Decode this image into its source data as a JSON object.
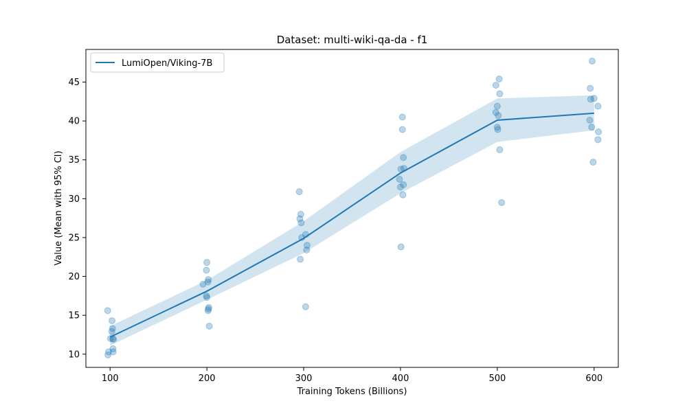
{
  "chart_data": {
    "type": "line",
    "title": "Dataset: multi-wiki-qa-da - f1",
    "xlabel": "Training Tokens (Billions)",
    "ylabel": "Value (Mean with 95% CI)",
    "xlim": [
      75,
      625
    ],
    "ylim": [
      8.3,
      49.2
    ],
    "xticks": [
      100,
      200,
      300,
      400,
      500,
      600
    ],
    "yticks": [
      10,
      15,
      20,
      25,
      30,
      35,
      40,
      45
    ],
    "grid": false,
    "legend_position": "top-left",
    "colors": {
      "line": "#1f77b4",
      "band": "#1f77b4",
      "points": "#1f77b4"
    },
    "series": [
      {
        "name": "LumiOpen/Viking-7B",
        "x": [
          100,
          200,
          300,
          400,
          500,
          600
        ],
        "mean": [
          12.2,
          18.1,
          24.9,
          33.3,
          40.1,
          41.0
        ],
        "ci_lower": [
          11.1,
          17.0,
          23.0,
          30.7,
          37.3,
          38.8
        ],
        "ci_upper": [
          13.6,
          19.5,
          27.1,
          36.0,
          42.9,
          43.3
        ]
      }
    ],
    "scatter_points": [
      [
        97.5,
        15.6
      ],
      [
        98.5,
        10.3
      ],
      [
        97.8,
        9.9
      ],
      [
        102.0,
        14.3
      ],
      [
        102.5,
        13.3
      ],
      [
        101.8,
        12.9
      ],
      [
        100.5,
        12.0
      ],
      [
        102.8,
        12.0
      ],
      [
        103.5,
        11.9
      ],
      [
        103.0,
        10.7
      ],
      [
        103.2,
        10.3
      ],
      [
        200.0,
        21.8
      ],
      [
        199.5,
        20.8
      ],
      [
        196.0,
        19.0
      ],
      [
        201.5,
        19.6
      ],
      [
        201.0,
        19.3
      ],
      [
        199.5,
        17.5
      ],
      [
        200.0,
        17.3
      ],
      [
        202.0,
        16.0
      ],
      [
        201.5,
        15.8
      ],
      [
        201.2,
        15.6
      ],
      [
        202.5,
        13.6
      ],
      [
        295.5,
        30.9
      ],
      [
        297.0,
        28.0
      ],
      [
        296.0,
        27.4
      ],
      [
        297.5,
        26.9
      ],
      [
        302.0,
        25.4
      ],
      [
        298.0,
        25.0
      ],
      [
        303.5,
        24.0
      ],
      [
        303.0,
        23.4
      ],
      [
        296.5,
        22.2
      ],
      [
        302.0,
        16.1
      ],
      [
        402.0,
        40.5
      ],
      [
        402.0,
        38.9
      ],
      [
        403.0,
        35.3
      ],
      [
        400.5,
        33.8
      ],
      [
        403.5,
        33.9
      ],
      [
        399.0,
        32.5
      ],
      [
        403.0,
        31.8
      ],
      [
        400.0,
        31.5
      ],
      [
        402.5,
        30.5
      ],
      [
        400.5,
        23.8
      ],
      [
        502.0,
        45.4
      ],
      [
        498.5,
        44.6
      ],
      [
        502.5,
        43.5
      ],
      [
        500.0,
        41.9
      ],
      [
        498.5,
        41.1
      ],
      [
        501.0,
        40.7
      ],
      [
        500.0,
        39.2
      ],
      [
        500.5,
        38.9
      ],
      [
        502.5,
        36.3
      ],
      [
        504.5,
        29.5
      ],
      [
        598.0,
        47.7
      ],
      [
        596.0,
        44.2
      ],
      [
        596.5,
        42.8
      ],
      [
        600.0,
        42.9
      ],
      [
        604.0,
        41.9
      ],
      [
        595.5,
        40.1
      ],
      [
        597.5,
        39.2
      ],
      [
        604.5,
        38.6
      ],
      [
        604.0,
        37.6
      ],
      [
        599.0,
        34.7
      ]
    ]
  }
}
